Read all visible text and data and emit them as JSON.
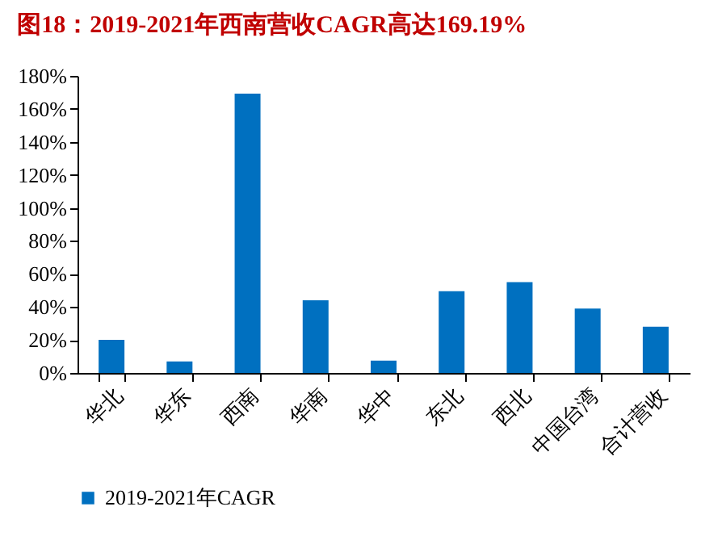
{
  "chart_data": {
    "type": "bar",
    "title": "图18：2019-2021年西南营收CAGR高达169.19%",
    "categories": [
      "华北",
      "华东",
      "西南",
      "华南",
      "华中",
      "东北",
      "西北",
      "中国台湾",
      "合计营收"
    ],
    "series": [
      {
        "name": "2019-2021年CAGR",
        "color": "#0070c0",
        "values": [
          20,
          7,
          169.19,
          44,
          7.5,
          49.5,
          55,
          39,
          28
        ]
      }
    ],
    "ylim": [
      0,
      180
    ],
    "yticks": [
      {
        "value": 0,
        "label": "0%"
      },
      {
        "value": 20,
        "label": "20%"
      },
      {
        "value": 40,
        "label": "40%"
      },
      {
        "value": 60,
        "label": "60%"
      },
      {
        "value": 80,
        "label": "80%"
      },
      {
        "value": 100,
        "label": "100%"
      },
      {
        "value": 120,
        "label": "120%"
      },
      {
        "value": 140,
        "label": "140%"
      },
      {
        "value": 160,
        "label": "160%"
      },
      {
        "value": 180,
        "label": "180%"
      }
    ],
    "grid": false,
    "legend": "bottom"
  }
}
